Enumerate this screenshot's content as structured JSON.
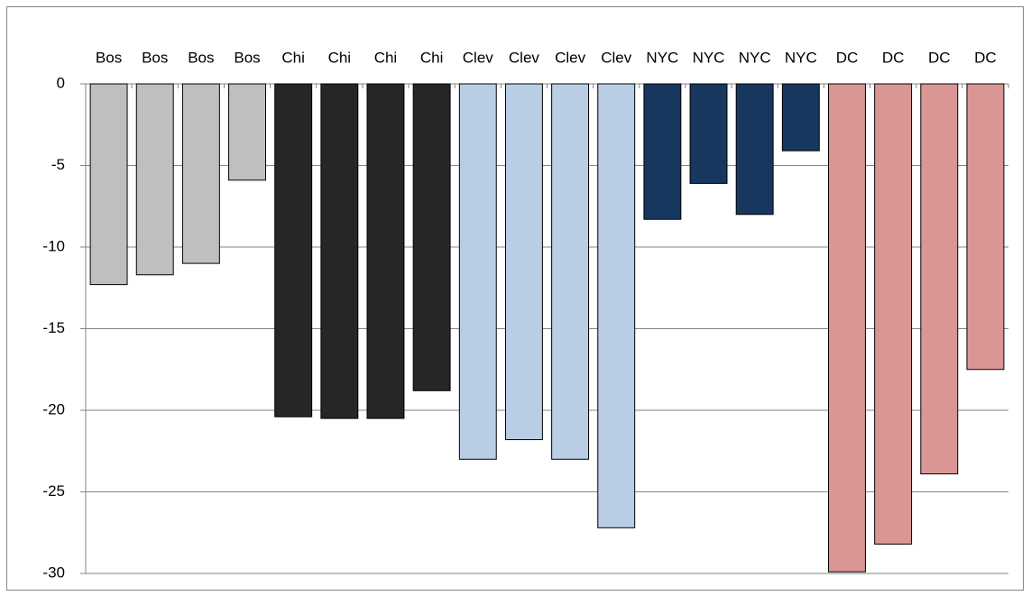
{
  "chart_data": {
    "type": "bar",
    "categories": [
      "Bos",
      "Bos",
      "Bos",
      "Bos",
      "Chi",
      "Chi",
      "Chi",
      "Chi",
      "Clev",
      "Clev",
      "Clev",
      "Clev",
      "NYC",
      "NYC",
      "NYC",
      "NYC",
      "DC",
      "DC",
      "DC",
      "DC"
    ],
    "values": [
      -12.3,
      -11.7,
      -11.0,
      -5.9,
      -20.4,
      -20.5,
      -20.5,
      -18.8,
      -23.0,
      -21.8,
      -23.0,
      -27.2,
      -8.3,
      -6.1,
      -8.0,
      -4.1,
      -29.9,
      -28.2,
      -23.9,
      -17.5
    ],
    "colors": [
      "#bfbfbf",
      "#bfbfbf",
      "#bfbfbf",
      "#bfbfbf",
      "#262626",
      "#262626",
      "#262626",
      "#262626",
      "#b9cde5",
      "#b9cde5",
      "#b9cde5",
      "#b9cde5",
      "#17375e",
      "#17375e",
      "#17375e",
      "#17375e",
      "#d99694",
      "#d99694",
      "#d99694",
      "#d99694"
    ],
    "ylim": [
      -30,
      0
    ],
    "yticks": [
      0,
      -5,
      -10,
      -15,
      -20,
      -25,
      -30
    ],
    "grid": true
  }
}
